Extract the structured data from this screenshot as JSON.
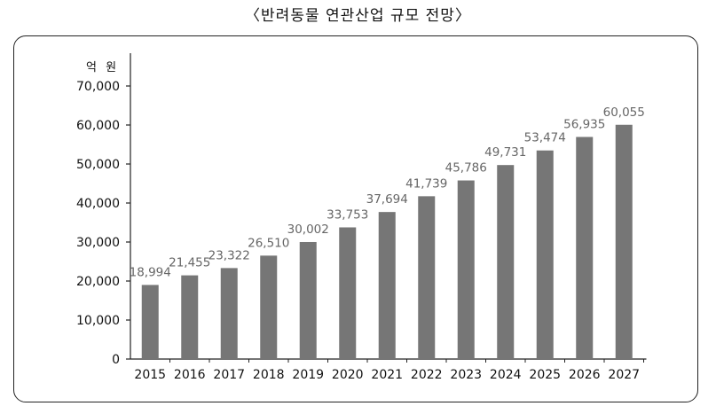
{
  "title": "〈반려동물 연관산업 규모 전망〉",
  "chart_data": {
    "type": "bar",
    "unit_label": "억 원",
    "categories": [
      "2015",
      "2016",
      "2017",
      "2018",
      "2019",
      "2020",
      "2021",
      "2022",
      "2023",
      "2024",
      "2025",
      "2026",
      "2027"
    ],
    "values": [
      18994,
      21455,
      23322,
      26510,
      30002,
      33753,
      37694,
      41739,
      45786,
      49731,
      53474,
      56935,
      60055
    ],
    "data_labels": [
      "18,994",
      "21,455",
      "23,322",
      "26,510",
      "30,002",
      "33,753",
      "37,694",
      "41,739",
      "45,786",
      "49,731",
      "53,474",
      "56,935",
      "60,055"
    ],
    "yticks": [
      0,
      10000,
      20000,
      30000,
      40000,
      50000,
      60000,
      70000
    ],
    "ytick_labels": [
      "0",
      "10,000",
      "20,000",
      "30,000",
      "40,000",
      "50,000",
      "60,000",
      "70,000"
    ],
    "ylim": [
      0,
      70000
    ],
    "bar_color": "#767676",
    "grid": false,
    "legend": "none"
  }
}
